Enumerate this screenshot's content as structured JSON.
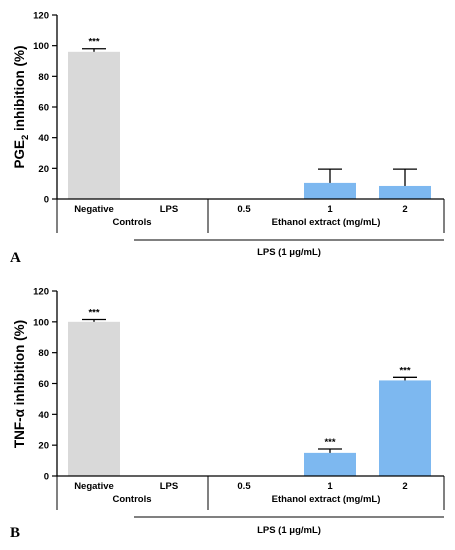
{
  "chart_data": [
    {
      "type": "bar",
      "panel_label": "A",
      "ylabel_main": "PGE",
      "ylabel_sub": "2",
      "ylabel_rest": " inhibition (%)",
      "ylim": [
        0,
        120
      ],
      "yticks": [
        "0",
        "20",
        "40",
        "60",
        "80",
        "100",
        "120"
      ],
      "categories": [
        "Negative",
        "LPS",
        "0.5",
        "1",
        "2"
      ],
      "values": [
        96,
        0,
        0,
        10.5,
        8.5
      ],
      "errors": [
        2,
        0,
        0,
        9,
        11
      ],
      "significance": [
        "***",
        "",
        "",
        "",
        ""
      ],
      "bar_colors": [
        "#d9d9d9",
        "#d9d9d9",
        "#7db8f0",
        "#7db8f0",
        "#7db8f0"
      ],
      "group_labels": [
        "Controls",
        "Ethanol extract (mg/mL)"
      ],
      "bracket_label": "LPS (1 μg/mL)"
    },
    {
      "type": "bar",
      "panel_label": "B",
      "ylabel_main": "TNF-α inhibition (%)",
      "ylim": [
        0,
        120
      ],
      "yticks": [
        "0",
        "20",
        "40",
        "60",
        "80",
        "100",
        "120"
      ],
      "categories": [
        "Negative",
        "LPS",
        "0.5",
        "1",
        "2"
      ],
      "values": [
        100,
        0,
        0,
        15,
        62
      ],
      "errors": [
        1.5,
        0,
        0,
        2.5,
        2
      ],
      "significance": [
        "***",
        "",
        "",
        "***",
        "***"
      ],
      "bar_colors": [
        "#d9d9d9",
        "#d9d9d9",
        "#7db8f0",
        "#7db8f0",
        "#7db8f0"
      ],
      "group_labels": [
        "Controls",
        "Ethanol extract (mg/mL)"
      ],
      "bracket_label": "LPS (1 μg/mL)"
    }
  ]
}
